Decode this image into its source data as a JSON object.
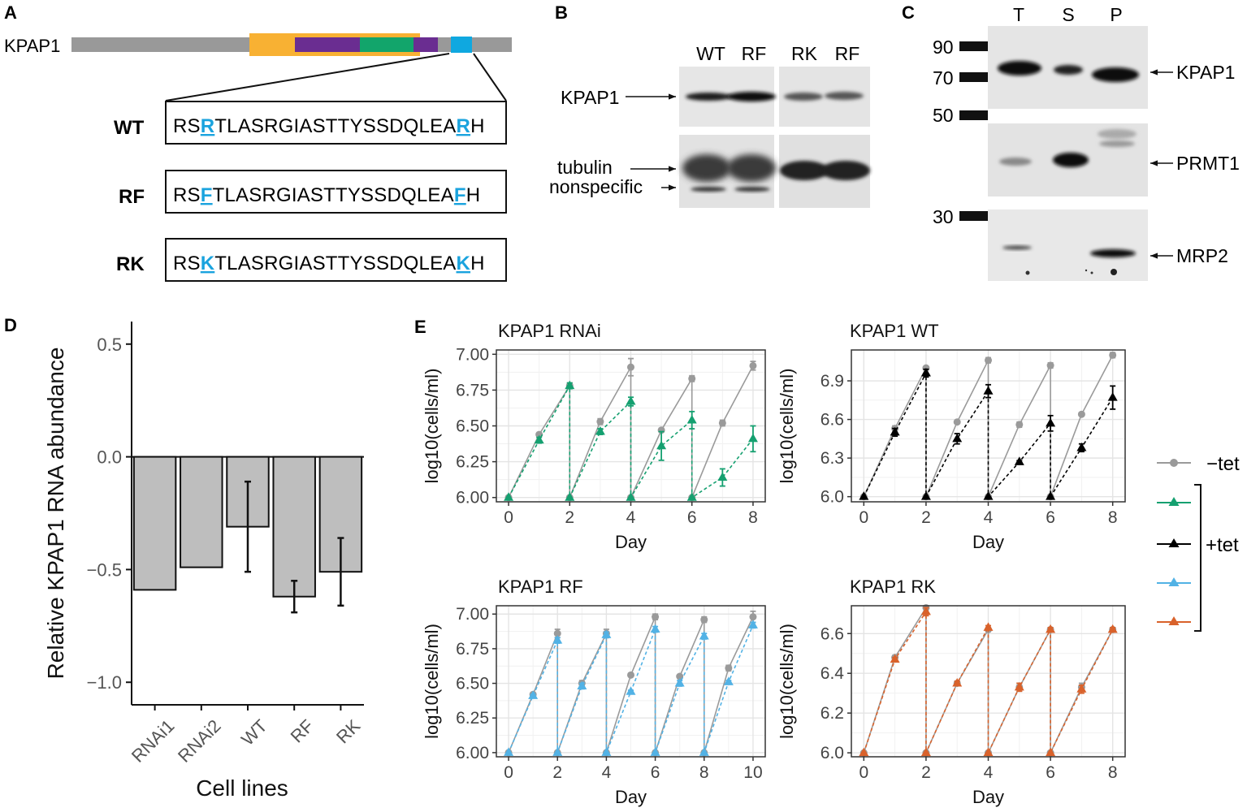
{
  "panel_letters": {
    "a": "A",
    "b": "B",
    "c": "C",
    "d": "D",
    "e": "E"
  },
  "panel_a": {
    "protein_name": "KPAP1",
    "domain_colors": {
      "backbone": "#999999",
      "orange": "#f8b133",
      "purple": "#6a2d91",
      "green": "#12a56b",
      "motif": "#0fa8e0"
    },
    "sequences": [
      {
        "label": "WT",
        "prefix": "RS",
        "mut1": "R",
        "middle": "TLASRGIASTTYSSDQLEA",
        "mut2": "R",
        "suffix": "H"
      },
      {
        "label": "RF",
        "prefix": "RS",
        "mut1": "F",
        "middle": "TLASRGIASTTYSSDQLEA",
        "mut2": "F",
        "suffix": "H"
      },
      {
        "label": "RK",
        "prefix": "RS",
        "mut1": "K",
        "middle": "TLASRGIASTTYSSDQLEA",
        "mut2": "K",
        "suffix": "H"
      }
    ]
  },
  "panel_b": {
    "lanes": [
      "WT",
      "RF",
      "RK",
      "RF"
    ],
    "labels": {
      "kpap1": "KPAP1",
      "tubulin": "tubulin",
      "nonspecific": "nonspecific"
    }
  },
  "panel_c": {
    "lanes": [
      "T",
      "S",
      "P"
    ],
    "markers": [
      "90",
      "70",
      "50",
      "30"
    ],
    "labels": {
      "kpap1": "KPAP1",
      "prmt1": "PRMT1",
      "mrp2": "MRP2"
    }
  },
  "legend": {
    "minus_tet": "−tet",
    "plus_tet": "+tet"
  },
  "chart_data": [
    {
      "panel": "D",
      "type": "bar",
      "title": "",
      "xlabel": "Cell lines",
      "ylabel": "Relative KPAP1 RNA abundance",
      "ylim": [
        -1.1,
        0.6
      ],
      "yticks": [
        0.5,
        0.0,
        -0.5,
        -1.0
      ],
      "ytick_labels": [
        "0.5",
        "0.0",
        "−0.5",
        "−1.0"
      ],
      "categories": [
        "RNAi1",
        "RNAi2",
        "WT",
        "RF",
        "RK"
      ],
      "values": [
        -0.59,
        -0.49,
        -0.31,
        -0.62,
        -0.51
      ],
      "error": [
        0,
        0,
        0.2,
        0.07,
        0.15
      ],
      "bar_color": "#bebebe"
    },
    {
      "panel": "E1",
      "type": "line",
      "title": "KPAP1 RNAi",
      "xlabel": "Day",
      "ylabel": "log10(cells/ml)",
      "xlim": [
        -0.4,
        8.4
      ],
      "ylim": [
        5.97,
        7.03
      ],
      "xticks": [
        0,
        2,
        4,
        6,
        8
      ],
      "yticks": [
        6.0,
        6.25,
        6.5,
        6.75,
        7.0
      ],
      "ytick_labels": [
        "6.00",
        "6.25",
        "6.50",
        "6.75",
        "7.00"
      ],
      "series": [
        {
          "name": "−tet",
          "color": "#9a9a9a",
          "marker": "circle",
          "dashed": false,
          "x": [
            0,
            1,
            2,
            2,
            3,
            4,
            4,
            5,
            6,
            6,
            7,
            8
          ],
          "y": [
            6.0,
            6.44,
            6.78,
            6.0,
            6.53,
            6.91,
            6.0,
            6.47,
            6.83,
            6.0,
            6.52,
            6.92
          ],
          "err": [
            0,
            0.01,
            0.02,
            0,
            0.02,
            0.06,
            0,
            0.01,
            0.02,
            0,
            0.02,
            0.03
          ]
        },
        {
          "name": "+tet",
          "color": "#15a070",
          "marker": "triangle",
          "dashed": true,
          "x": [
            0,
            1,
            2,
            2,
            3,
            4,
            4,
            5,
            6,
            6,
            7,
            8
          ],
          "y": [
            6.0,
            6.4,
            6.78,
            6.0,
            6.46,
            6.67,
            6.0,
            6.36,
            6.54,
            6.0,
            6.14,
            6.41
          ],
          "err": [
            0,
            0.02,
            0.02,
            0,
            0.02,
            0.03,
            0,
            0.1,
            0.06,
            0,
            0.06,
            0.09
          ]
        }
      ]
    },
    {
      "panel": "E2",
      "type": "line",
      "title": "KPAP1 WT",
      "xlabel": "Day",
      "ylabel": "log10(cells/ml)",
      "xlim": [
        -0.4,
        8.4
      ],
      "ylim": [
        5.96,
        7.14
      ],
      "xticks": [
        0,
        2,
        4,
        6,
        8
      ],
      "yticks": [
        6.0,
        6.3,
        6.6,
        6.9
      ],
      "ytick_labels": [
        "6.0",
        "6.3",
        "6.6",
        "6.9"
      ],
      "series": [
        {
          "name": "−tet",
          "color": "#9a9a9a",
          "marker": "circle",
          "dashed": false,
          "x": [
            0,
            1,
            2,
            2,
            3,
            4,
            4,
            5,
            6,
            6,
            7,
            8
          ],
          "y": [
            6.0,
            6.53,
            7.0,
            6.0,
            6.58,
            7.06,
            6.0,
            6.56,
            7.02,
            6.0,
            6.64,
            7.1
          ],
          "err": [
            0,
            0.02,
            0.01,
            0,
            0.01,
            0.02,
            0,
            0.02,
            0.02,
            0,
            0.01,
            0.02
          ]
        },
        {
          "name": "+tet",
          "color": "#000000",
          "marker": "triangle",
          "dashed": true,
          "x": [
            0,
            1,
            2,
            2,
            3,
            4,
            4,
            5,
            6,
            6,
            7,
            8
          ],
          "y": [
            6.0,
            6.5,
            6.96,
            6.0,
            6.45,
            6.82,
            6.0,
            6.27,
            6.57,
            6.0,
            6.38,
            6.77
          ],
          "err": [
            0,
            0.03,
            0.03,
            0,
            0.04,
            0.05,
            0,
            0.01,
            0.06,
            0,
            0.03,
            0.09
          ]
        }
      ]
    },
    {
      "panel": "E3",
      "type": "line",
      "title": "KPAP1 RF",
      "xlabel": "Day",
      "ylabel": "log10(cells/ml)",
      "xlim": [
        -0.5,
        10.5
      ],
      "ylim": [
        5.97,
        7.06
      ],
      "xticks": [
        0,
        2,
        4,
        6,
        8,
        10
      ],
      "yticks": [
        6.0,
        6.25,
        6.5,
        6.75,
        7.0
      ],
      "ytick_labels": [
        "6.00",
        "6.25",
        "6.50",
        "6.75",
        "7.00"
      ],
      "series": [
        {
          "name": "−tet",
          "color": "#9a9a9a",
          "marker": "circle",
          "dashed": false,
          "x": [
            0,
            1,
            2,
            2,
            3,
            4,
            4,
            5,
            6,
            6,
            7,
            8,
            8,
            9,
            10
          ],
          "y": [
            6.0,
            6.42,
            6.86,
            6.0,
            6.5,
            6.86,
            6.0,
            6.56,
            6.98,
            6.0,
            6.55,
            6.96,
            6.0,
            6.61,
            6.98
          ],
          "err": [
            0,
            0.01,
            0.03,
            0,
            0.02,
            0.03,
            0,
            0.01,
            0.02,
            0,
            0.01,
            0.02,
            0,
            0.02,
            0.04
          ]
        },
        {
          "name": "+tet",
          "color": "#52b2e5",
          "marker": "triangle",
          "dashed": true,
          "x": [
            0,
            1,
            2,
            2,
            3,
            4,
            4,
            5,
            6,
            6,
            7,
            8,
            8,
            9,
            10
          ],
          "y": [
            6.0,
            6.41,
            6.81,
            6.0,
            6.48,
            6.85,
            6.0,
            6.44,
            6.89,
            6.0,
            6.5,
            6.84,
            6.0,
            6.51,
            6.92
          ],
          "err": [
            0,
            0.01,
            0.02,
            0,
            0.02,
            0.02,
            0,
            0.01,
            0.02,
            0,
            0.02,
            0.02,
            0,
            0.01,
            0.02
          ]
        }
      ]
    },
    {
      "panel": "E4",
      "type": "line",
      "title": "KPAP1 RK",
      "xlabel": "Day",
      "ylabel": "log10(cells/ml)",
      "xlim": [
        -0.4,
        8.4
      ],
      "ylim": [
        5.98,
        6.74
      ],
      "xticks": [
        0,
        2,
        4,
        6,
        8
      ],
      "yticks": [
        6.0,
        6.2,
        6.4,
        6.6
      ],
      "ytick_labels": [
        "6.0",
        "6.2",
        "6.4",
        "6.6"
      ],
      "series": [
        {
          "name": "−tet",
          "color": "#9a9a9a",
          "marker": "circle",
          "dashed": false,
          "x": [
            0,
            1,
            2,
            2,
            3,
            4,
            4,
            5,
            6,
            6,
            7,
            8
          ],
          "y": [
            6.0,
            6.48,
            6.73,
            6.0,
            6.35,
            6.62,
            6.0,
            6.33,
            6.62,
            6.0,
            6.33,
            6.62
          ],
          "err": [
            0,
            0.01,
            0.01,
            0,
            0.01,
            0.01,
            0,
            0.02,
            0.01,
            0,
            0.02,
            0.01
          ]
        },
        {
          "name": "+tet",
          "color": "#d9622b",
          "marker": "triangle",
          "dashed": true,
          "x": [
            0,
            1,
            2,
            2,
            3,
            4,
            4,
            5,
            6,
            6,
            7,
            8
          ],
          "y": [
            6.0,
            6.47,
            6.71,
            6.0,
            6.35,
            6.63,
            6.0,
            6.33,
            6.62,
            6.0,
            6.32,
            6.62
          ],
          "err": [
            0,
            0.01,
            0.02,
            0,
            0.01,
            0.01,
            0,
            0.02,
            0.01,
            0,
            0.02,
            0.01
          ]
        }
      ]
    }
  ]
}
